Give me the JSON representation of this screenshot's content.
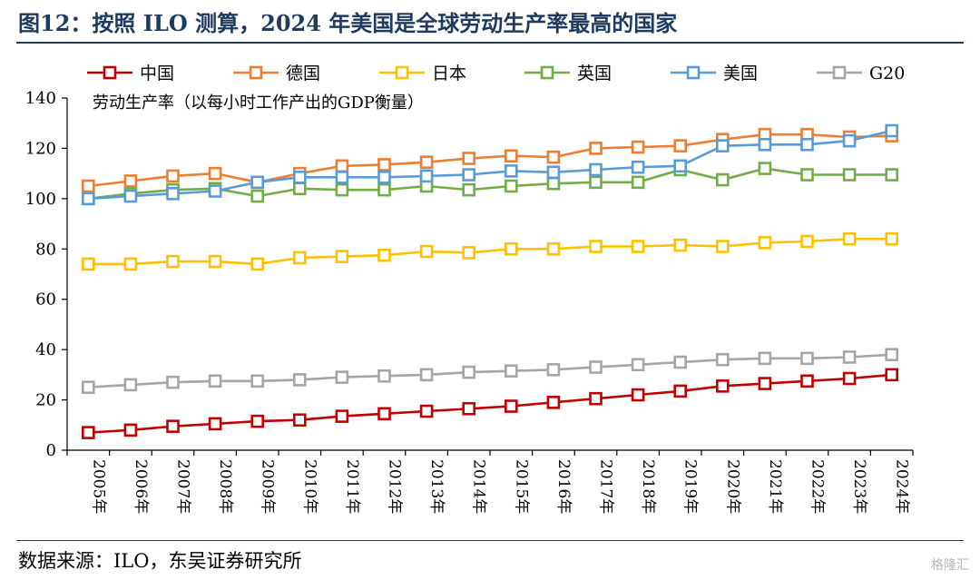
{
  "title": "图12：按照 ILO 测算，2024 年美国是全球劳动生产率最高的国家",
  "source": "数据来源：ILO，东吴证券研究所",
  "watermark": "格隆汇",
  "chart_data": {
    "type": "line",
    "ylabel": "劳动生产率（以每小时工作产出的GDP衡量）",
    "ylim": [
      0,
      140
    ],
    "yticks": [
      0,
      20,
      40,
      60,
      80,
      100,
      120,
      140
    ],
    "legend_position": "top",
    "grid": false,
    "marker": "square",
    "categories": [
      "2005年",
      "2006年",
      "2007年",
      "2008年",
      "2009年",
      "2010年",
      "2011年",
      "2012年",
      "2013年",
      "2014年",
      "2015年",
      "2016年",
      "2017年",
      "2018年",
      "2019年",
      "2020年",
      "2021年",
      "2022年",
      "2023年",
      "2024年"
    ],
    "series": [
      {
        "name": "中国",
        "color": "#c00000",
        "values": [
          7,
          8,
          9.5,
          10.5,
          11.5,
          12,
          13.5,
          14.5,
          15.5,
          16.5,
          17.5,
          19,
          20.5,
          22,
          23.5,
          25.5,
          26.5,
          27.5,
          28.5,
          30
        ]
      },
      {
        "name": "德国",
        "color": "#ed7d31",
        "values": [
          105,
          107,
          109,
          110,
          106.5,
          110,
          113,
          113.5,
          114.5,
          116,
          117,
          116.5,
          120,
          120.5,
          121,
          123.5,
          125.5,
          125.5,
          124.5,
          125
        ]
      },
      {
        "name": "日本",
        "color": "#ffc000",
        "values": [
          74,
          74,
          75,
          75,
          74,
          76.5,
          77,
          77.5,
          79,
          78.5,
          80,
          80,
          81,
          81,
          81.5,
          81,
          82.5,
          83,
          84,
          84
        ]
      },
      {
        "name": "英国",
        "color": "#70ad47",
        "values": [
          100,
          102,
          103.5,
          104,
          101,
          104,
          103.5,
          103.5,
          105,
          103.5,
          105,
          106,
          106.5,
          106.5,
          111.5,
          107.5,
          112,
          109.5,
          109.5,
          109.5
        ]
      },
      {
        "name": "美国",
        "color": "#5b9bd5",
        "values": [
          100,
          101,
          102,
          103,
          106.5,
          108.5,
          108.5,
          108.5,
          109,
          109.5,
          111,
          110.5,
          111.5,
          112.5,
          113,
          121,
          121.5,
          121.5,
          123,
          127
        ]
      },
      {
        "name": "G20",
        "color": "#a5a5a5",
        "values": [
          25,
          26,
          27,
          27.5,
          27.5,
          28,
          29,
          29.5,
          30,
          31,
          31.5,
          32,
          33,
          34,
          35,
          36,
          36.5,
          36.5,
          37,
          38
        ]
      }
    ]
  }
}
